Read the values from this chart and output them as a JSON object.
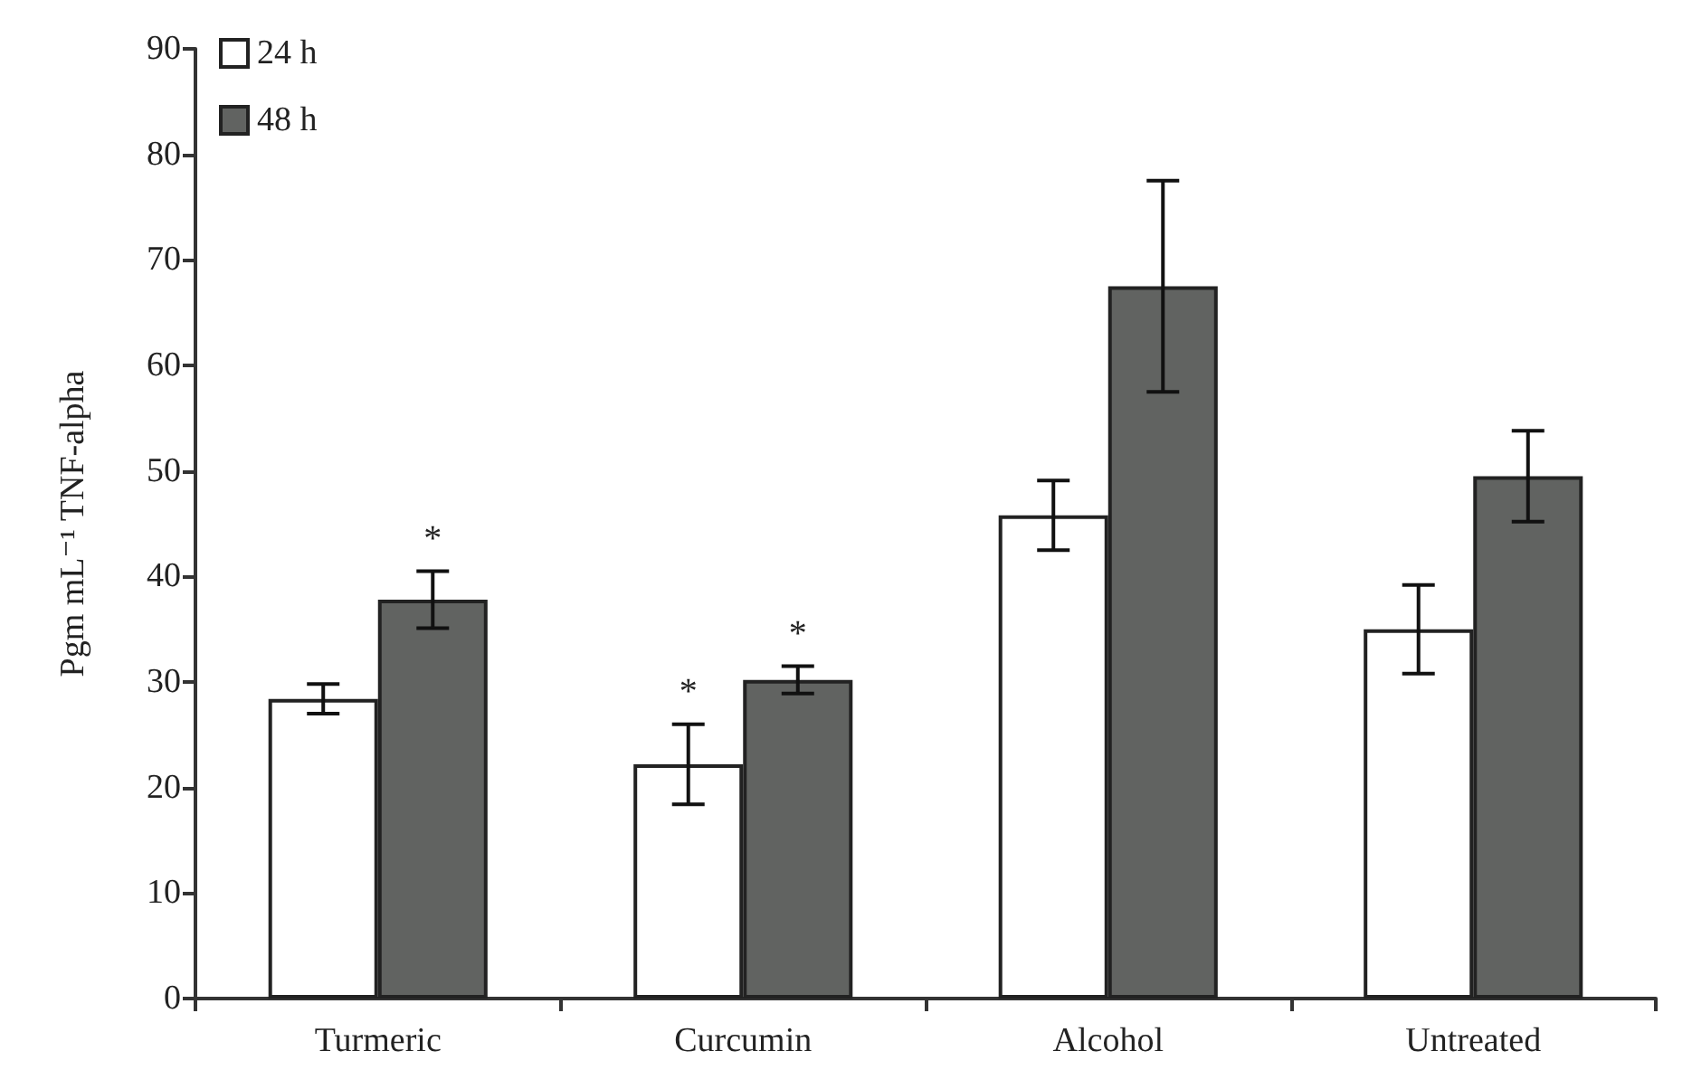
{
  "chart_data": {
    "type": "bar",
    "ylabel": "Pgm mL⁻¹ TNF-alpha",
    "categories": [
      "Turmeric",
      "Curcumin",
      "Alcohol",
      "Untreated"
    ],
    "series": [
      {
        "name": "24 h",
        "color": "#ffffff",
        "values": [
          28.4,
          22.2,
          45.8,
          35.0
        ],
        "errors": [
          1.4,
          3.8,
          3.3,
          4.2
        ]
      },
      {
        "name": "48 h",
        "color": "#616361",
        "values": [
          37.8,
          30.2,
          67.5,
          49.5
        ],
        "errors": [
          2.7,
          1.3,
          10,
          4.3
        ]
      }
    ],
    "annotations": [
      {
        "text": "*",
        "x": "Turmeric",
        "y": 37.8
      },
      {
        "text": "*",
        "x": "Curcumin",
        "y": 22.2
      },
      {
        "text": "*",
        "x": "Curcumin",
        "y": 30.2
      }
    ],
    "ylim": [
      0,
      90
    ],
    "yticks": [
      0,
      10,
      20,
      30,
      40,
      50,
      60,
      70,
      80,
      90
    ],
    "grid": false,
    "legend": "top left"
  }
}
